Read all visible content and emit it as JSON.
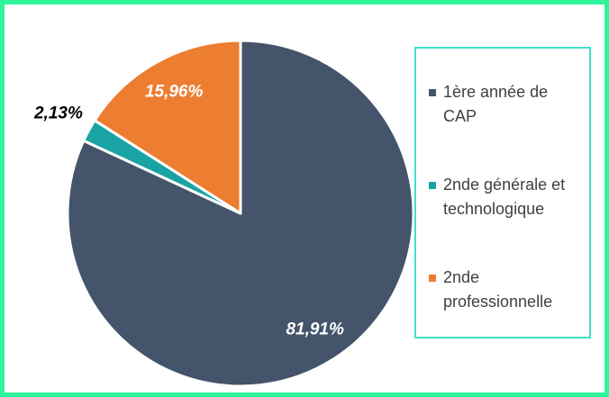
{
  "chart_data": {
    "type": "pie",
    "categories": [
      "1ère année de CAP",
      "2nde générale et technologique",
      "2nde professionnelle"
    ],
    "values": [
      81.91,
      2.13,
      15.96
    ],
    "value_labels": [
      "81,91%",
      "2,13%",
      "15,96%"
    ],
    "colors": [
      "#44546a",
      "#1aa3a3",
      "#ed7d31"
    ],
    "legend": "right"
  }
}
